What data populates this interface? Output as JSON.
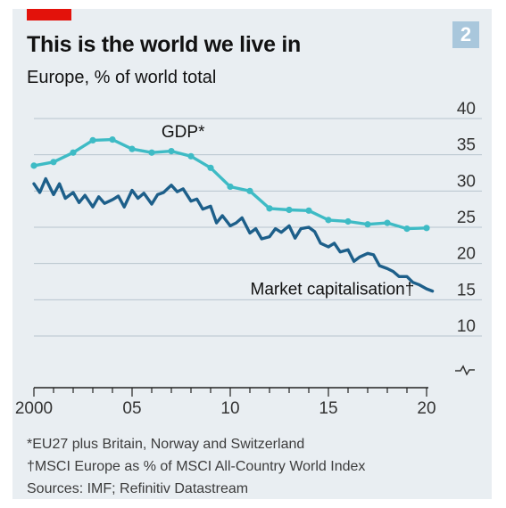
{
  "badge": "2",
  "title": "This is the world we live in",
  "subtitle": "Europe, % of world total",
  "footnotes": [
    "*EU27 plus Britain, Norway and Switzerland",
    "†MSCI Europe as % of MSCI All-Country World Index",
    "Sources: IMF; Refinitiv Datastream"
  ],
  "colors": {
    "gdp": "#3ebbc5",
    "market": "#1d5f8a",
    "brand_red": "#e3120b",
    "panel": "#e9eef2"
  },
  "chart_data": {
    "type": "line",
    "xlabel": "",
    "ylabel": "",
    "xlim": [
      2000,
      2020
    ],
    "ylim": [
      10,
      40
    ],
    "axis_break": true,
    "y_ticks": [
      {
        "value": 40,
        "label": "40"
      },
      {
        "value": 35,
        "label": "35"
      },
      {
        "value": 30,
        "label": "30"
      },
      {
        "value": 25,
        "label": "25"
      },
      {
        "value": 20,
        "label": "20"
      },
      {
        "value": 15,
        "label": "15"
      },
      {
        "value": 10,
        "label": "10"
      }
    ],
    "x_ticks": [
      {
        "value": 2000,
        "label": "2000"
      },
      {
        "value": 2005,
        "label": "05"
      },
      {
        "value": 2010,
        "label": "10"
      },
      {
        "value": 2015,
        "label": "15"
      },
      {
        "value": 2020,
        "label": "20"
      }
    ],
    "series": [
      {
        "name": "GDP*",
        "markers": true,
        "x": [
          2000,
          2001,
          2002,
          2003,
          2004,
          2005,
          2006,
          2007,
          2008,
          2009,
          2010,
          2011,
          2012,
          2013,
          2014,
          2015,
          2016,
          2017,
          2018,
          2019,
          2020
        ],
        "y": [
          33.5,
          34.0,
          35.3,
          37.0,
          37.1,
          35.8,
          35.3,
          35.5,
          34.8,
          33.2,
          30.6,
          30.0,
          27.6,
          27.4,
          27.3,
          26.0,
          25.8,
          25.4,
          25.6,
          24.8,
          24.9
        ]
      },
      {
        "name": "Market capitalisation†",
        "markers": false,
        "x": [
          2000,
          2000.3,
          2000.6,
          2001,
          2001.3,
          2001.6,
          2002,
          2002.3,
          2002.6,
          2003,
          2003.3,
          2003.6,
          2004,
          2004.3,
          2004.6,
          2005,
          2005.3,
          2005.6,
          2006,
          2006.3,
          2006.6,
          2007,
          2007.3,
          2007.6,
          2008,
          2008.3,
          2008.6,
          2009,
          2009.3,
          2009.6,
          2010,
          2010.3,
          2010.6,
          2011,
          2011.3,
          2011.6,
          2012,
          2012.3,
          2012.6,
          2013,
          2013.3,
          2013.6,
          2014,
          2014.3,
          2014.6,
          2015,
          2015.3,
          2015.6,
          2016,
          2016.3,
          2016.6,
          2017,
          2017.3,
          2017.6,
          2018,
          2018.3,
          2018.6,
          2019,
          2019.3,
          2019.6,
          2020,
          2020.3
        ],
        "y": [
          31.0,
          29.8,
          31.7,
          29.5,
          31.0,
          29.0,
          29.8,
          28.4,
          29.4,
          27.8,
          29.2,
          28.3,
          28.8,
          29.3,
          27.8,
          30.1,
          29.0,
          29.7,
          28.2,
          29.5,
          29.8,
          30.8,
          29.9,
          30.3,
          28.6,
          28.9,
          27.5,
          27.9,
          25.6,
          26.6,
          25.2,
          25.6,
          26.3,
          24.2,
          24.8,
          23.4,
          23.7,
          24.8,
          24.3,
          25.2,
          23.5,
          24.8,
          25.0,
          24.4,
          22.8,
          22.3,
          22.8,
          21.6,
          21.9,
          20.3,
          20.9,
          21.4,
          21.2,
          19.7,
          19.3,
          18.9,
          18.2,
          18.2,
          17.4,
          17.1,
          16.5,
          16.2
        ]
      }
    ],
    "annotations": [
      {
        "text": "GDP*",
        "series": 0
      },
      {
        "text": "Market capitalisation†",
        "series": 1
      }
    ]
  }
}
